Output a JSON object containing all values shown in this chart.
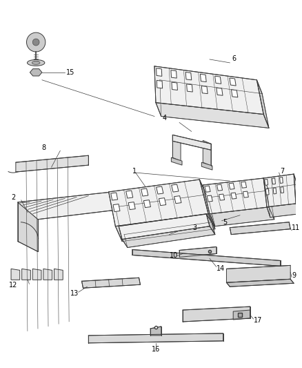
{
  "background_color": "#ffffff",
  "line_color": "#3a3a3a",
  "fig_width": 4.38,
  "fig_height": 5.33,
  "dpi": 100,
  "lw": 0.7
}
